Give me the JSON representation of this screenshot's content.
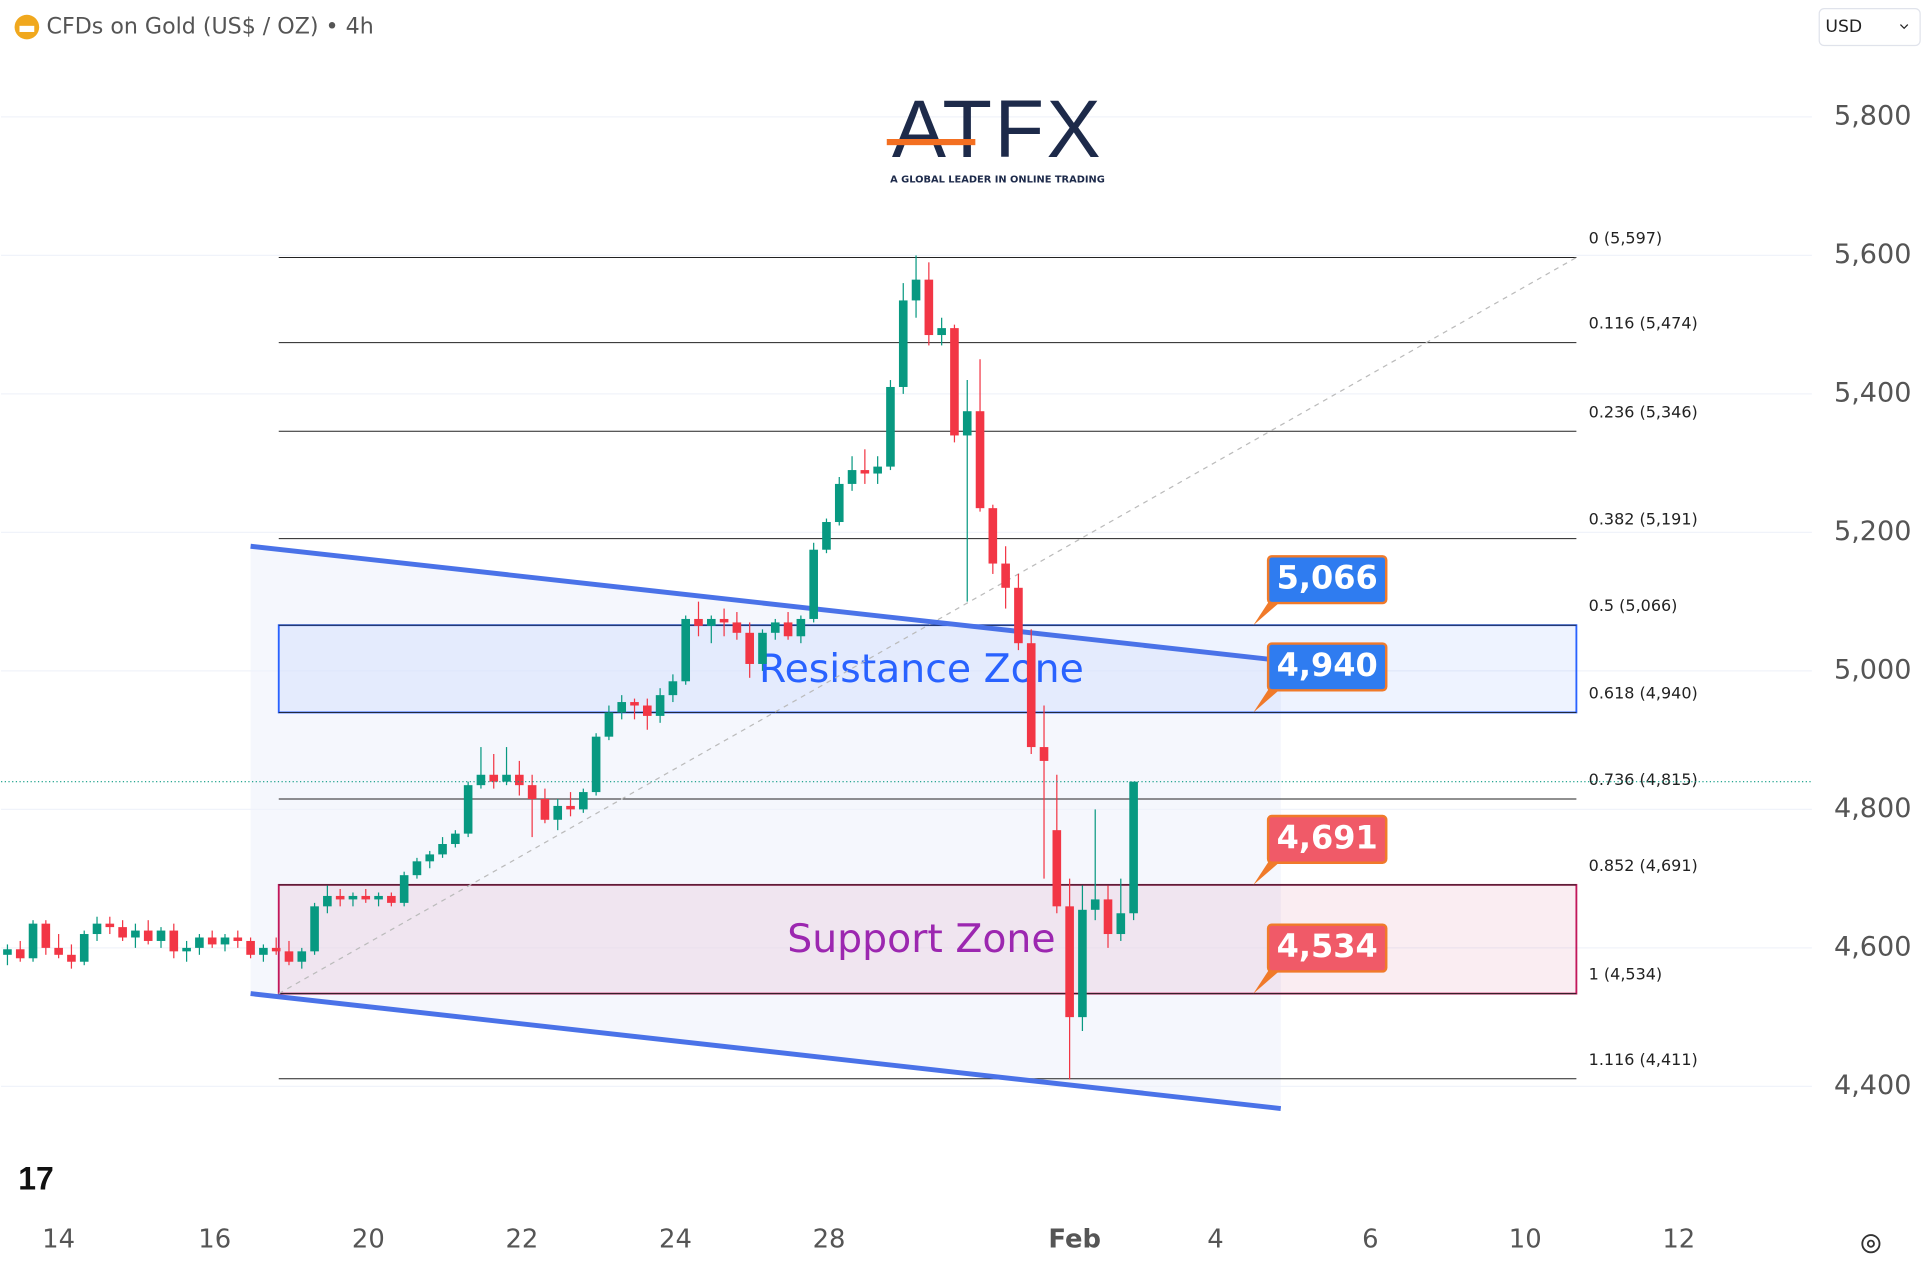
{
  "chart_data": {
    "type": "candlestick",
    "title": "CFDs on Gold (US$ / OZ) • 4h",
    "currency": "USD",
    "logo": {
      "brand": "ATFX",
      "tagline": "A GLOBAL LEADER IN ONLINE TRADING"
    },
    "up_color": "#089981",
    "down_color": "#f23645",
    "candles": {
      "open": [
        4590,
        4598,
        4585,
        4635,
        4600,
        4590,
        4580,
        4620,
        4635,
        4630,
        4615,
        4625,
        4610,
        4625,
        4595,
        4600,
        4615,
        4605,
        4615,
        4610,
        4590,
        4600,
        4595,
        4580,
        4595,
        4660,
        4675,
        4670,
        4675,
        4670,
        4675,
        4665,
        4705,
        4725,
        4735,
        4750,
        4765,
        4835,
        4850,
        4840,
        4850,
        4835,
        4815,
        4785,
        4805,
        4800,
        4825,
        4905,
        4940,
        4955,
        4950,
        4935,
        4965,
        4985,
        5075,
        5065,
        5075,
        5070,
        5055,
        5010,
        5055,
        5070,
        5050,
        5075,
        5175,
        5215,
        5270,
        5290,
        5285,
        5295,
        5410,
        5535,
        5565,
        5485,
        5495,
        5340,
        5375,
        5235,
        5155,
        5120,
        5040,
        4890,
        4770,
        4660,
        4500,
        4655,
        4670,
        4620,
        4650
      ],
      "high": [
        4605,
        4610,
        4640,
        4640,
        4620,
        4605,
        4625,
        4645,
        4645,
        4640,
        4635,
        4640,
        4630,
        4635,
        4610,
        4620,
        4625,
        4620,
        4625,
        4615,
        4605,
        4615,
        4610,
        4600,
        4665,
        4690,
        4685,
        4680,
        4685,
        4680,
        4680,
        4710,
        4730,
        4740,
        4760,
        4770,
        4840,
        4890,
        4880,
        4890,
        4870,
        4850,
        4830,
        4815,
        4825,
        4830,
        4910,
        4950,
        4965,
        4960,
        4960,
        4975,
        4995,
        5080,
        5100,
        5080,
        5090,
        5085,
        5070,
        5060,
        5075,
        5085,
        5080,
        5185,
        5220,
        5280,
        5310,
        5320,
        5310,
        5420,
        5560,
        5600,
        5590,
        5510,
        5500,
        5420,
        5450,
        5240,
        5180,
        5140,
        5060,
        4950,
        4850,
        4700,
        4690,
        4800,
        4690,
        4700,
        4840
      ],
      "low": [
        4575,
        4580,
        4580,
        4590,
        4585,
        4570,
        4575,
        4610,
        4620,
        4610,
        4600,
        4605,
        4600,
        4585,
        4580,
        4590,
        4600,
        4595,
        4600,
        4585,
        4580,
        4590,
        4575,
        4570,
        4590,
        4650,
        4660,
        4660,
        4665,
        4660,
        4660,
        4660,
        4700,
        4715,
        4730,
        4745,
        4760,
        4830,
        4830,
        4835,
        4820,
        4760,
        4780,
        4770,
        4790,
        4795,
        4820,
        4900,
        4930,
        4930,
        4915,
        4925,
        4955,
        4980,
        5050,
        5040,
        5050,
        5045,
        4990,
        5000,
        5045,
        5045,
        5040,
        5070,
        5170,
        5210,
        5260,
        5270,
        5270,
        5290,
        5400,
        5510,
        5470,
        5470,
        5330,
        5100,
        5230,
        5140,
        5090,
        5030,
        4880,
        4700,
        4650,
        4410,
        4480,
        4640,
        4600,
        4610,
        4640
      ],
      "close": [
        4598,
        4585,
        4635,
        4600,
        4590,
        4580,
        4620,
        4635,
        4630,
        4615,
        4625,
        4610,
        4625,
        4595,
        4600,
        4615,
        4605,
        4615,
        4610,
        4590,
        4600,
        4595,
        4580,
        4595,
        4660,
        4675,
        4670,
        4675,
        4670,
        4675,
        4665,
        4705,
        4725,
        4735,
        4750,
        4765,
        4835,
        4850,
        4840,
        4850,
        4835,
        4815,
        4785,
        4805,
        4800,
        4825,
        4905,
        4940,
        4955,
        4950,
        4935,
        4965,
        4985,
        5075,
        5065,
        5075,
        5070,
        5055,
        5010,
        5055,
        5070,
        5050,
        5075,
        5175,
        5215,
        5270,
        5290,
        5285,
        5295,
        5410,
        5535,
        5565,
        5485,
        5495,
        5340,
        5375,
        5235,
        5155,
        5120,
        5040,
        4890,
        4870,
        4660,
        4500,
        4655,
        4670,
        4620,
        4650,
        4840
      ]
    },
    "xlim": [
      -0.5,
      141
    ],
    "xticks": [
      {
        "value": 4,
        "label": "14"
      },
      {
        "value": 16.2,
        "label": "16"
      },
      {
        "value": 28.2,
        "label": "20"
      },
      {
        "value": 40.2,
        "label": "22"
      },
      {
        "value": 52.2,
        "label": "24"
      },
      {
        "value": 64.2,
        "label": "28"
      },
      {
        "value": 83.4,
        "label": "Feb"
      },
      {
        "value": 94.4,
        "label": "4"
      },
      {
        "value": 106.5,
        "label": "6"
      },
      {
        "value": 118.6,
        "label": "10"
      },
      {
        "value": 130.6,
        "label": "12"
      }
    ],
    "ylim": [
      4300,
      5950
    ],
    "yticks": [
      {
        "value": 4400,
        "label": "4,400"
      },
      {
        "value": 4600,
        "label": "4,600"
      },
      {
        "value": 4800,
        "label": "4,800"
      },
      {
        "value": 5000,
        "label": "5,000"
      },
      {
        "value": 5200,
        "label": "5,200"
      },
      {
        "value": 5400,
        "label": "5,400"
      },
      {
        "value": 5600,
        "label": "5,600"
      },
      {
        "value": 5800,
        "label": "5,800"
      }
    ],
    "grid": true,
    "fib": {
      "x": [
        21.2,
        122.6
      ],
      "values": [
        4534,
        5597
      ],
      "levels": [
        {
          "value": 5597,
          "label": "0 (5,597)"
        },
        {
          "value": 5474,
          "label": "0.116 (5,474)"
        },
        {
          "value": 5346,
          "label": "0.236 (5,346)"
        },
        {
          "value": 5191,
          "label": "0.382 (5,191)"
        },
        {
          "value": 5066,
          "label": "0.5 (5,066)"
        },
        {
          "value": 4940,
          "label": "0.618 (4,940)"
        },
        {
          "value": 4815,
          "label": "0.736 (4,815)"
        },
        {
          "value": 4691,
          "label": "0.852 (4,691)"
        },
        {
          "value": 4534,
          "label": "1 (4,534)"
        },
        {
          "value": 4411,
          "label": "1.116 (4,411)"
        }
      ]
    },
    "zones": [
      {
        "name": "Resistance Zone",
        "range": [
          4940,
          5066
        ],
        "color": "#2962ff",
        "text_color": "#2962ff"
      },
      {
        "name": "Support Zone",
        "range": [
          4534,
          4691
        ],
        "color": "#c2185b",
        "text_color": "#9c27b0"
      }
    ],
    "trendlines": [
      {
        "x": [
          19,
          99.5
        ],
        "values": [
          5180,
          5015
        ],
        "color": "#4a72e8"
      },
      {
        "x": [
          19,
          99.5
        ],
        "values": [
          4534,
          4368
        ],
        "color": "#4a72e8"
      }
    ],
    "price_tags": [
      {
        "value": 5066,
        "label": "5,066",
        "color": "#2f7cf0"
      },
      {
        "value": 4940,
        "label": "4,940",
        "color": "#2f7cf0"
      },
      {
        "value": 4691,
        "label": "4,691",
        "color": "#f05a68"
      },
      {
        "value": 4534,
        "label": "4,534",
        "color": "#f05a68"
      }
    ]
  }
}
